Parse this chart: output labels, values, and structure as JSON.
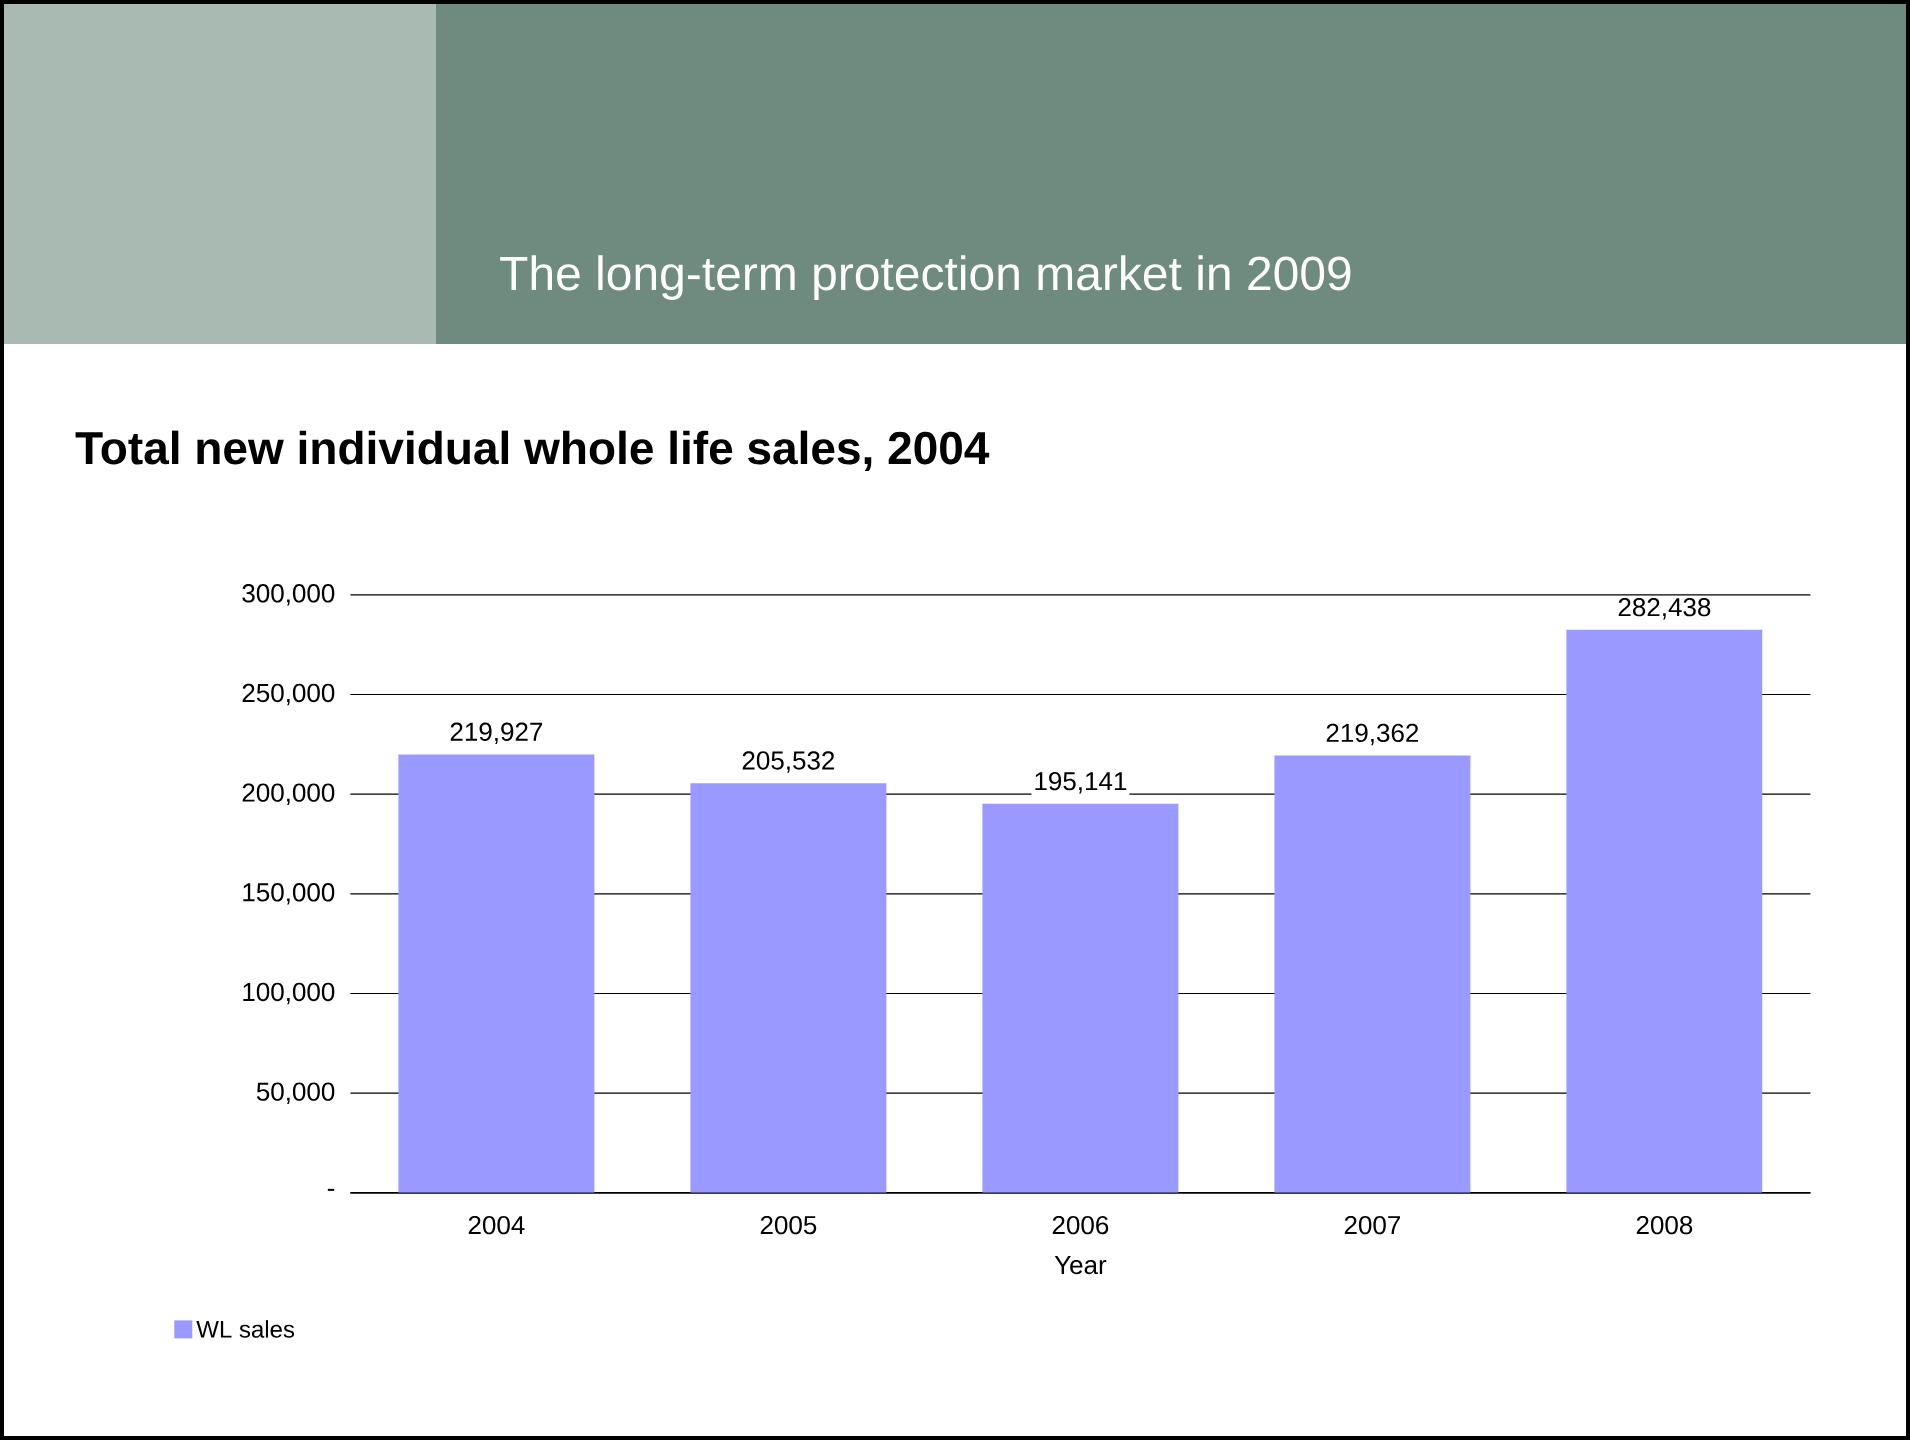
{
  "chart_data": {
    "type": "bar",
    "title": "The long-term protection market in 2009",
    "subtitle": "Total new individual whole life sales, 2004",
    "xlabel": "Year",
    "categories": [
      "2004",
      "2005",
      "2006",
      "2007",
      "2008"
    ],
    "series": [
      {
        "name": "WL sales",
        "color": "#9999ff",
        "values": [
          219927,
          205532,
          195141,
          219362,
          282438
        ],
        "value_labels": [
          "219,927",
          "205,532",
          "195,141",
          "219,362",
          "282,438"
        ]
      }
    ],
    "ylim": [
      0,
      300000
    ],
    "yticks": [
      {
        "value": 0,
        "label": "-"
      },
      {
        "value": 50000,
        "label": "50,000"
      },
      {
        "value": 100000,
        "label": "100,000"
      },
      {
        "value": 150000,
        "label": "150,000"
      },
      {
        "value": 200000,
        "label": "200,000"
      },
      {
        "value": 250000,
        "label": "250,000"
      },
      {
        "value": 300000,
        "label": "300,000"
      }
    ],
    "grid": "y",
    "legend": "bottom left"
  }
}
